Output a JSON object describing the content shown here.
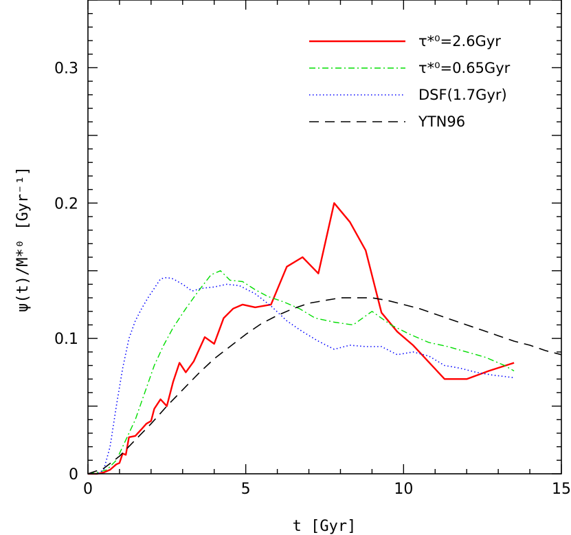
{
  "chart_data": {
    "type": "line",
    "xlabel": "t [Gyr]",
    "ylabel": "ψ(t)/M*⁰ [Gyr⁻¹]",
    "xlim": [
      0,
      15
    ],
    "ylim": [
      0,
      0.35
    ],
    "xticks": [
      0,
      5,
      10,
      15
    ],
    "xtick_labels": [
      "0",
      "5",
      "10",
      "15"
    ],
    "yticks": [
      0,
      0.1,
      0.2,
      0.3
    ],
    "ytick_labels": [
      "0",
      "0.1",
      "0.2",
      "0.3"
    ],
    "legend_position": "top-right",
    "grid": false,
    "series": [
      {
        "name": "τ*⁰=2.6Gyr",
        "color": "#ff0000",
        "style": "solid",
        "x": [
          0,
          0.3,
          0.5,
          0.7,
          0.9,
          1.0,
          1.1,
          1.2,
          1.3,
          1.5,
          1.7,
          1.85,
          2.0,
          2.1,
          2.3,
          2.5,
          2.7,
          2.9,
          3.1,
          3.35,
          3.7,
          4.0,
          4.3,
          4.6,
          4.9,
          5.3,
          5.8,
          6.3,
          6.8,
          7.3,
          7.8,
          8.3,
          8.8,
          9.3,
          9.8,
          10.3,
          11.3,
          12.0,
          12.7,
          13.5
        ],
        "y": [
          0,
          0,
          0.001,
          0.003,
          0.007,
          0.008,
          0.015,
          0.014,
          0.027,
          0.028,
          0.033,
          0.037,
          0.039,
          0.048,
          0.055,
          0.05,
          0.068,
          0.082,
          0.075,
          0.083,
          0.101,
          0.096,
          0.115,
          0.122,
          0.125,
          0.123,
          0.125,
          0.153,
          0.16,
          0.148,
          0.2,
          0.186,
          0.165,
          0.119,
          0.105,
          0.095,
          0.07,
          0.07,
          0.076,
          0.082
        ]
      },
      {
        "name": "τ*⁰=0.65Gyr",
        "color": "#00dd00",
        "style": "dashdot",
        "x": [
          0,
          0.3,
          0.6,
          0.9,
          1.2,
          1.5,
          1.8,
          2.1,
          2.4,
          2.7,
          3.1,
          3.5,
          3.9,
          4.2,
          4.5,
          4.9,
          5.3,
          5.7,
          6.2,
          6.7,
          7.2,
          7.8,
          8.4,
          9.0,
          9.6,
          10.2,
          10.8,
          11.4,
          12.0,
          12.6,
          13.2,
          13.5
        ],
        "y": [
          0,
          0.001,
          0.003,
          0.01,
          0.025,
          0.04,
          0.06,
          0.08,
          0.095,
          0.108,
          0.122,
          0.135,
          0.147,
          0.15,
          0.143,
          0.142,
          0.136,
          0.131,
          0.127,
          0.122,
          0.115,
          0.112,
          0.11,
          0.12,
          0.11,
          0.103,
          0.097,
          0.094,
          0.09,
          0.086,
          0.08,
          0.076
        ]
      },
      {
        "name": "DSF(1.7Gyr)",
        "color": "#0000ff",
        "style": "dotted",
        "x": [
          0,
          0.3,
          0.5,
          0.7,
          0.9,
          1.1,
          1.3,
          1.5,
          1.7,
          1.9,
          2.1,
          2.3,
          2.5,
          2.7,
          3.0,
          3.3,
          3.6,
          4.0,
          4.4,
          4.8,
          5.3,
          5.8,
          6.3,
          6.8,
          7.3,
          7.8,
          8.3,
          8.8,
          9.3,
          9.8,
          10.3,
          10.8,
          11.3,
          11.8,
          12.3,
          12.8,
          13.5
        ],
        "y": [
          0,
          0,
          0.003,
          0.02,
          0.05,
          0.078,
          0.1,
          0.113,
          0.122,
          0.13,
          0.137,
          0.144,
          0.145,
          0.144,
          0.14,
          0.135,
          0.137,
          0.138,
          0.14,
          0.139,
          0.133,
          0.124,
          0.113,
          0.105,
          0.098,
          0.092,
          0.095,
          0.094,
          0.094,
          0.088,
          0.09,
          0.087,
          0.08,
          0.078,
          0.075,
          0.073,
          0.071
        ]
      },
      {
        "name": "YTN96",
        "color": "#000000",
        "style": "dashed",
        "x": [
          0,
          0.5,
          1.0,
          1.5,
          2.0,
          2.5,
          3.0,
          3.5,
          4.0,
          4.5,
          5.0,
          5.5,
          6.0,
          6.5,
          7.0,
          7.5,
          8.0,
          8.5,
          9.0,
          9.5,
          10.0,
          10.5,
          11.0,
          11.5,
          12.0,
          12.5,
          13.0,
          13.5,
          14.0,
          14.5,
          15.0
        ],
        "y": [
          0,
          0.004,
          0.013,
          0.025,
          0.037,
          0.05,
          0.062,
          0.074,
          0.085,
          0.094,
          0.103,
          0.111,
          0.117,
          0.122,
          0.126,
          0.128,
          0.13,
          0.13,
          0.13,
          0.128,
          0.125,
          0.122,
          0.118,
          0.114,
          0.11,
          0.106,
          0.102,
          0.098,
          0.095,
          0.091,
          0.088
        ]
      }
    ]
  }
}
